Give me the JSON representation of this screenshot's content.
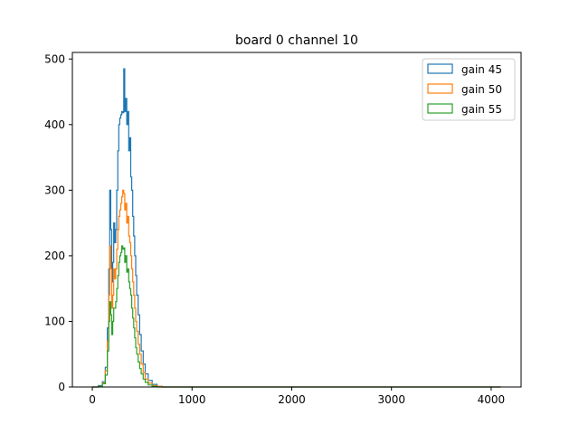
{
  "chart_data": {
    "type": "histogram-step",
    "title": "board 0 channel 10",
    "xlabel": "",
    "ylabel": "",
    "xlim": [
      -200,
      4300
    ],
    "ylim": [
      0,
      510
    ],
    "xticks": [
      0,
      1000,
      2000,
      3000,
      4000
    ],
    "yticks": [
      0,
      100,
      200,
      300,
      400,
      500
    ],
    "grid": false,
    "legend_position": "top-right",
    "series": [
      {
        "name": "gain 45",
        "color": "#1f77b4",
        "x": [
          0,
          60,
          100,
          130,
          150,
          165,
          175,
          185,
          195,
          205,
          215,
          225,
          235,
          245,
          255,
          265,
          275,
          285,
          295,
          305,
          315,
          325,
          335,
          345,
          355,
          365,
          375,
          385,
          395,
          405,
          415,
          425,
          435,
          445,
          460,
          475,
          490,
          510,
          530,
          560,
          600,
          650,
          700,
          4096
        ],
        "y": [
          0,
          2,
          8,
          30,
          90,
          180,
          300,
          240,
          160,
          190,
          250,
          220,
          240,
          300,
          360,
          400,
          410,
          415,
          420,
          418,
          485,
          420,
          440,
          400,
          420,
          360,
          380,
          320,
          300,
          260,
          230,
          200,
          170,
          140,
          110,
          80,
          55,
          35,
          20,
          10,
          4,
          1,
          0,
          0
        ]
      },
      {
        "name": "gain 50",
        "color": "#ff7f0e",
        "x": [
          0,
          60,
          100,
          130,
          150,
          165,
          175,
          185,
          195,
          205,
          215,
          225,
          235,
          245,
          255,
          265,
          275,
          285,
          295,
          305,
          315,
          325,
          335,
          345,
          355,
          365,
          375,
          385,
          395,
          405,
          415,
          425,
          435,
          445,
          460,
          475,
          490,
          510,
          530,
          560,
          600,
          650,
          700,
          4096
        ],
        "y": [
          0,
          1,
          6,
          25,
          70,
          140,
          215,
          180,
          120,
          140,
          180,
          165,
          180,
          210,
          240,
          260,
          270,
          280,
          290,
          300,
          295,
          270,
          280,
          250,
          260,
          230,
          220,
          200,
          180,
          160,
          140,
          120,
          100,
          85,
          65,
          50,
          35,
          22,
          12,
          6,
          2,
          1,
          0,
          0
        ]
      },
      {
        "name": "gain 55",
        "color": "#2ca02c",
        "x": [
          0,
          60,
          100,
          130,
          150,
          165,
          175,
          185,
          195,
          205,
          215,
          225,
          235,
          245,
          255,
          265,
          275,
          285,
          295,
          305,
          315,
          325,
          335,
          345,
          355,
          365,
          375,
          385,
          395,
          405,
          415,
          425,
          435,
          445,
          460,
          475,
          490,
          510,
          530,
          560,
          600,
          650,
          700,
          4096
        ],
        "y": [
          0,
          1,
          5,
          18,
          55,
          100,
          130,
          110,
          80,
          100,
          120,
          120,
          130,
          150,
          170,
          190,
          200,
          205,
          215,
          210,
          212,
          190,
          200,
          175,
          180,
          160,
          150,
          140,
          120,
          105,
          90,
          75,
          60,
          50,
          38,
          28,
          20,
          12,
          7,
          3,
          1,
          0,
          0,
          0
        ]
      }
    ]
  }
}
